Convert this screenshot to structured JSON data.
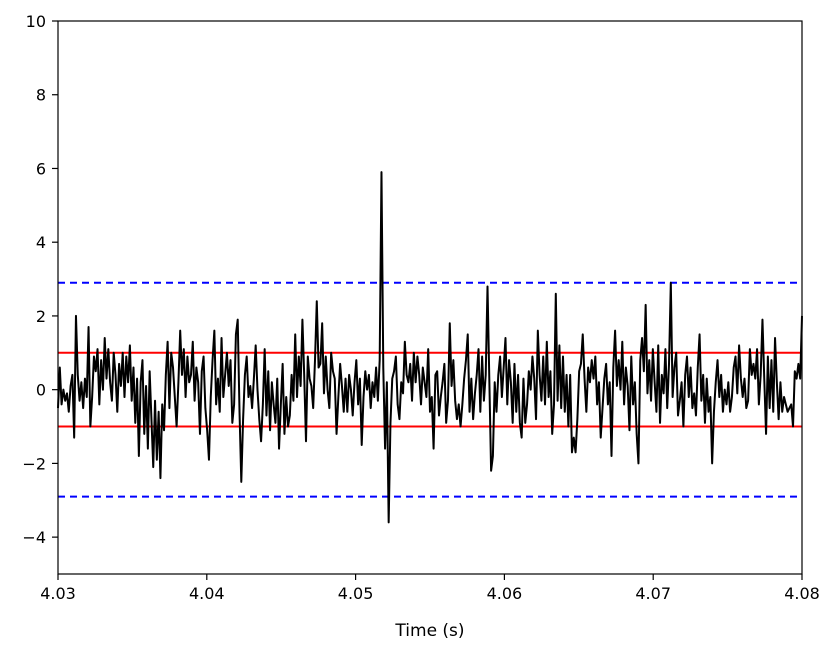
{
  "chart_data": {
    "type": "line",
    "title": "",
    "xlabel": "Time (s)",
    "ylabel": "",
    "xlim": [
      4.03,
      4.08
    ],
    "ylim": [
      -5,
      10
    ],
    "x_ticks": [
      "4.03",
      "4.04",
      "4.05",
      "4.06",
      "4.07",
      "4.08"
    ],
    "y_ticks": [
      "−4",
      "−2",
      "0",
      "2",
      "4",
      "6",
      "8",
      "10"
    ],
    "grid": false,
    "legend": "none",
    "colors": {
      "signal": "#000000",
      "inner_threshold": "#ff0000",
      "outer_threshold": "#0000ff"
    },
    "signal": {
      "x_start": 4.03,
      "x_step": 0.0001,
      "y": [
        -0.5,
        0.6,
        -0.4,
        0.0,
        -0.3,
        -0.1,
        -0.6,
        0.1,
        0.4,
        -1.3,
        2.0,
        0.4,
        -0.3,
        0.2,
        -0.5,
        0.3,
        -0.2,
        1.7,
        -1.0,
        -0.2,
        0.9,
        0.5,
        1.1,
        -0.4,
        0.8,
        0.0,
        1.4,
        0.3,
        1.1,
        0.2,
        -0.3,
        1.0,
        0.4,
        -0.6,
        0.7,
        0.1,
        1.0,
        -0.2,
        0.9,
        0.2,
        1.2,
        -0.3,
        0.6,
        -0.9,
        0.3,
        -1.8,
        0.2,
        0.8,
        -1.2,
        0.1,
        -1.6,
        0.5,
        -0.8,
        -2.1,
        -0.3,
        -1.9,
        -0.6,
        -2.4,
        -0.4,
        -1.1,
        0.4,
        1.3,
        -0.5,
        1.0,
        0.6,
        -0.2,
        -1.0,
        0.2,
        1.6,
        0.4,
        1.1,
        -0.2,
        0.9,
        0.2,
        0.4,
        1.3,
        -0.3,
        0.6,
        0.2,
        -1.2,
        0.5,
        0.9,
        -0.5,
        -1.1,
        -1.9,
        -0.2,
        0.8,
        1.6,
        -0.4,
        0.3,
        -0.6,
        1.4,
        -0.2,
        0.4,
        1.0,
        0.1,
        0.8,
        -0.9,
        -0.4,
        1.5,
        1.9,
        -0.6,
        -2.5,
        -0.8,
        0.4,
        0.9,
        -0.2,
        0.1,
        -0.5,
        0.3,
        1.2,
        0.0,
        -0.8,
        -1.4,
        -0.4,
        1.1,
        -0.7,
        0.5,
        -1.1,
        0.2,
        -0.4,
        -0.9,
        0.3,
        -1.6,
        -0.4,
        0.7,
        -1.2,
        -0.2,
        -1.0,
        -0.7,
        0.4,
        -0.3,
        1.5,
        -0.2,
        0.9,
        0.1,
        1.9,
        0.4,
        -1.4,
        0.9,
        0.3,
        0.1,
        -0.5,
        0.8,
        2.4,
        0.6,
        0.7,
        1.8,
        -0.1,
        0.9,
        0.0,
        -0.5,
        1.0,
        0.5,
        0.3,
        -1.2,
        -0.2,
        0.7,
        0.1,
        -0.6,
        0.3,
        -0.6,
        0.4,
        0.0,
        -0.7,
        0.2,
        0.8,
        -0.4,
        0.3,
        -1.5,
        -0.2,
        0.5,
        0.0,
        0.4,
        -0.5,
        0.2,
        -0.2,
        0.6,
        -0.3,
        0.8,
        5.9,
        0.6,
        -1.6,
        0.2,
        -3.6,
        -0.9,
        0.3,
        0.5,
        0.9,
        -0.4,
        -0.8,
        0.2,
        -0.1,
        1.3,
        0.4,
        0.2,
        0.7,
        -0.3,
        1.0,
        0.2,
        0.9,
        0.4,
        -0.4,
        0.6,
        0.2,
        -0.2,
        1.1,
        -0.6,
        -0.2,
        -1.6,
        0.4,
        0.5,
        -0.7,
        -0.2,
        0.2,
        0.7,
        -0.9,
        -0.3,
        1.8,
        0.1,
        0.8,
        -0.3,
        -0.8,
        -0.4,
        -1.0,
        -0.4,
        0.3,
        0.8,
        1.5,
        -0.6,
        0.3,
        -0.8,
        -0.1,
        0.4,
        1.1,
        -0.6,
        0.9,
        -0.3,
        0.4,
        2.8,
        0.3,
        -2.2,
        -1.8,
        0.2,
        -0.6,
        0.4,
        0.9,
        -0.2,
        0.6,
        1.4,
        -0.4,
        0.8,
        0.2,
        -0.9,
        0.7,
        -0.6,
        0.4,
        -0.9,
        -1.3,
        0.3,
        -0.9,
        -0.4,
        0.5,
        0.0,
        0.9,
        0.3,
        -0.8,
        1.6,
        0.4,
        -0.3,
        0.9,
        -0.4,
        1.3,
        -0.2,
        0.5,
        -1.2,
        -0.4,
        2.6,
        -0.3,
        1.2,
        -0.5,
        0.9,
        -0.6,
        0.4,
        -1.0,
        0.4,
        -1.7,
        -1.3,
        -1.7,
        -0.8,
        0.5,
        0.7,
        1.5,
        0.3,
        -0.6,
        0.6,
        0.2,
        0.8,
        0.3,
        0.9,
        -0.4,
        0.2,
        -1.3,
        -0.5,
        0.3,
        0.7,
        -0.4,
        0.2,
        -1.8,
        0.6,
        1.6,
        0.1,
        0.8,
        0.0,
        1.3,
        -0.4,
        0.6,
        0.1,
        -1.1,
        0.9,
        -0.4,
        0.2,
        -1.2,
        -2.0,
        0.8,
        1.4,
        0.5,
        2.3,
        -0.1,
        0.8,
        -0.3,
        1.1,
        0.2,
        -0.6,
        1.2,
        -0.9,
        0.4,
        -0.1,
        1.1,
        -0.5,
        0.7,
        2.9,
        -0.2,
        0.6,
        1.0,
        -0.7,
        -0.3,
        0.2,
        -1.0,
        0.4,
        0.9,
        -0.2,
        0.6,
        -0.5,
        -0.1,
        -0.7,
        0.6,
        1.5,
        -0.3,
        0.4,
        -0.9,
        0.3,
        -0.6,
        -0.2,
        -2.0,
        -0.6,
        0.2,
        0.8,
        -0.2,
        0.4,
        -0.6,
        0.0,
        -0.4,
        0.2,
        -0.6,
        -0.2,
        0.6,
        0.9,
        -0.1,
        1.2,
        0.3,
        -0.2,
        0.3,
        -0.5,
        -0.3,
        1.1,
        0.4,
        0.7,
        0.3,
        1.1,
        -0.4,
        0.4,
        1.9,
        0.3,
        -1.2,
        0.9,
        -0.5,
        0.8,
        -0.6,
        1.4,
        0.2,
        -0.8,
        0.2,
        -0.6,
        -0.2,
        -0.4,
        -0.6,
        -0.5,
        -0.4,
        -1.0,
        0.5,
        0.3,
        0.7,
        0.3,
        2.0
      ]
    },
    "reference_lines": [
      {
        "name": "outer_upper",
        "y": 2.9,
        "style": "dashed",
        "color": "#0000ff"
      },
      {
        "name": "inner_upper",
        "y": 1.0,
        "style": "solid",
        "color": "#ff0000"
      },
      {
        "name": "inner_lower",
        "y": -1.0,
        "style": "solid",
        "color": "#ff0000"
      },
      {
        "name": "outer_lower",
        "y": -2.9,
        "style": "dashed",
        "color": "#0000ff"
      }
    ]
  }
}
